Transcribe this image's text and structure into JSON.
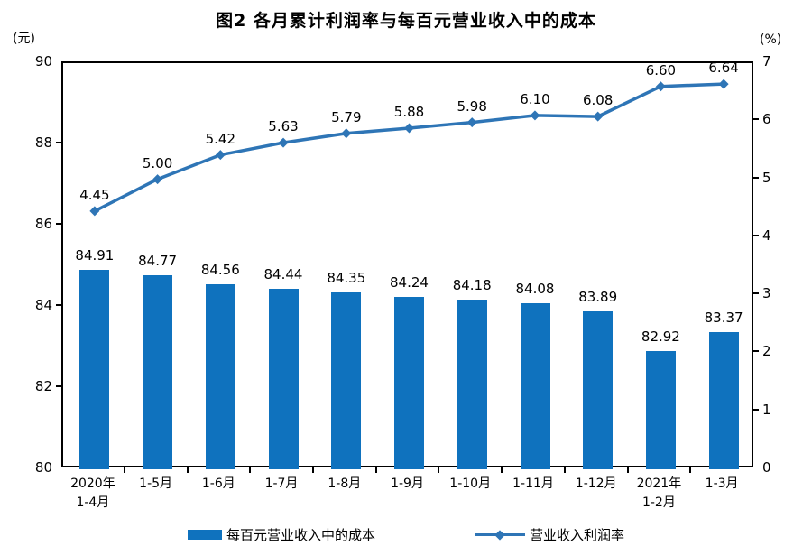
{
  "title": "图2 各月累计利润率与每百元营业收入中的成本",
  "colors": {
    "bar": "#0F72BE",
    "line": "#2E75B6",
    "axis": "#000000",
    "text": "#000000"
  },
  "chart_data": {
    "type": "combo_bar_line",
    "title": "图2 各月累计利润率与每百元营业收入中的成本",
    "categories": [
      "2020年\n1-4月",
      "1-5月",
      "1-6月",
      "1-7月",
      "1-8月",
      "1-9月",
      "1-10月",
      "1-11月",
      "1-12月",
      "2021年\n1-2月",
      "1-3月"
    ],
    "series": [
      {
        "name": "每百元营业收入中的成本",
        "type": "bar",
        "axis": "left",
        "values": [
          84.91,
          84.77,
          84.56,
          84.44,
          84.35,
          84.24,
          84.18,
          84.08,
          83.89,
          82.92,
          83.37
        ]
      },
      {
        "name": "营业收入利润率",
        "type": "line",
        "axis": "right",
        "values": [
          4.45,
          5.0,
          5.42,
          5.63,
          5.79,
          5.88,
          5.98,
          6.1,
          6.08,
          6.6,
          6.64
        ]
      }
    ],
    "left_axis": {
      "unit": "(元)",
      "min": 80,
      "max": 90,
      "ticks": [
        80,
        82,
        84,
        86,
        88,
        90
      ]
    },
    "right_axis": {
      "unit": "(%)",
      "min": 0,
      "max": 7,
      "ticks": [
        0,
        1,
        2,
        3,
        4,
        5,
        6,
        7
      ]
    },
    "grid": false,
    "legend_position": "bottom",
    "data_labels": true
  }
}
